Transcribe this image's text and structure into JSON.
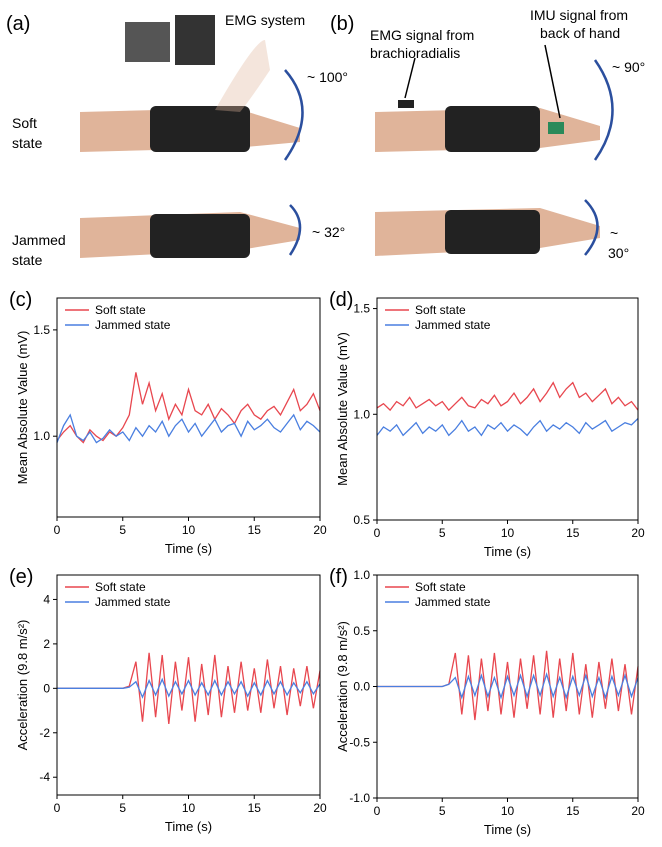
{
  "photos": {
    "a": {
      "label": "(a)",
      "system": "EMG system",
      "soft": [
        "Soft",
        "state"
      ],
      "soft_angle": "~ 100°",
      "jammed": [
        "Jammed",
        "state"
      ],
      "jammed_angle": "~ 32°"
    },
    "b": {
      "label": "(b)",
      "emg": [
        "EMG signal from",
        "brachioradialis"
      ],
      "imu": [
        "IMU signal from",
        "back of hand"
      ],
      "soft_angle": "~ 90°",
      "jammed_angle": [
        "~",
        "30°"
      ]
    }
  },
  "chart_data": [
    {
      "type": "line",
      "label": "(c)",
      "x_label": "Time (s)",
      "y_label": "Mean Absolute Value (mV)",
      "legend": "upper left",
      "xlim": [
        0,
        20
      ],
      "xticks": [
        0,
        5,
        10,
        15,
        20
      ],
      "ylim": [
        0.62,
        1.65
      ],
      "yticks": [
        {
          "value": 1,
          "label": "1.0"
        },
        1.5
      ],
      "x": [
        0,
        0.5,
        1,
        1.5,
        2,
        2.5,
        3,
        3.5,
        4,
        4.5,
        5,
        5.5,
        6,
        6.5,
        7,
        7.5,
        8,
        8.5,
        9,
        9.5,
        10,
        10.5,
        11,
        11.5,
        12,
        12.5,
        13,
        13.5,
        14,
        14.5,
        15,
        15.5,
        16,
        16.5,
        17,
        17.5,
        18,
        18.5,
        19,
        19.5,
        20
      ],
      "series": [
        {
          "name": "Soft state",
          "color": "#e8474f",
          "values": [
            0.98,
            1.02,
            1.05,
            1.0,
            0.97,
            1.03,
            1.0,
            0.98,
            1.02,
            1.0,
            1.04,
            1.1,
            1.3,
            1.15,
            1.25,
            1.12,
            1.2,
            1.08,
            1.15,
            1.1,
            1.22,
            1.12,
            1.1,
            1.15,
            1.08,
            1.13,
            1.1,
            1.06,
            1.12,
            1.15,
            1.1,
            1.08,
            1.12,
            1.14,
            1.1,
            1.16,
            1.22,
            1.12,
            1.15,
            1.2,
            1.12
          ]
        },
        {
          "name": "Jammed state",
          "color": "#4a7fe0",
          "values": [
            0.97,
            1.05,
            1.1,
            1.0,
            0.98,
            1.02,
            0.97,
            0.99,
            1.03,
            1.0,
            1.02,
            0.98,
            1.04,
            1.0,
            1.05,
            1.02,
            1.07,
            1.0,
            1.05,
            1.08,
            1.02,
            1.06,
            1.0,
            1.04,
            1.08,
            1.02,
            1.05,
            1.06,
            1.0,
            1.07,
            1.03,
            1.05,
            1.08,
            1.04,
            1.02,
            1.06,
            1.1,
            1.03,
            1.07,
            1.05,
            1.02
          ]
        }
      ]
    },
    {
      "type": "line",
      "label": "(d)",
      "x_label": "Time (s)",
      "y_label": "Mean Absolute Value (mV)",
      "legend": "upper left",
      "xlim": [
        0,
        20
      ],
      "xticks": [
        0,
        5,
        10,
        15,
        20
      ],
      "ylim": [
        0.5,
        1.55
      ],
      "yticks": [
        0.5,
        {
          "value": 1,
          "label": "1.0"
        },
        1.5
      ],
      "x": [
        0,
        0.5,
        1,
        1.5,
        2,
        2.5,
        3,
        3.5,
        4,
        4.5,
        5,
        5.5,
        6,
        6.5,
        7,
        7.5,
        8,
        8.5,
        9,
        9.5,
        10,
        10.5,
        11,
        11.5,
        12,
        12.5,
        13,
        13.5,
        14,
        14.5,
        15,
        15.5,
        16,
        16.5,
        17,
        17.5,
        18,
        18.5,
        19,
        19.5,
        20
      ],
      "series": [
        {
          "name": "Soft state",
          "color": "#e8474f",
          "values": [
            1.03,
            1.05,
            1.02,
            1.06,
            1.04,
            1.08,
            1.03,
            1.05,
            1.07,
            1.04,
            1.06,
            1.02,
            1.05,
            1.08,
            1.04,
            1.03,
            1.07,
            1.05,
            1.09,
            1.04,
            1.06,
            1.1,
            1.05,
            1.08,
            1.12,
            1.06,
            1.1,
            1.15,
            1.08,
            1.12,
            1.15,
            1.08,
            1.1,
            1.06,
            1.09,
            1.12,
            1.05,
            1.08,
            1.04,
            1.06,
            1.02
          ]
        },
        {
          "name": "Jammed state",
          "color": "#4a7fe0",
          "values": [
            0.9,
            0.94,
            0.92,
            0.95,
            0.9,
            0.93,
            0.96,
            0.91,
            0.94,
            0.92,
            0.95,
            0.9,
            0.93,
            0.97,
            0.92,
            0.94,
            0.9,
            0.95,
            0.93,
            0.96,
            0.92,
            0.95,
            0.93,
            0.9,
            0.94,
            0.97,
            0.92,
            0.95,
            0.93,
            0.96,
            0.94,
            0.91,
            0.96,
            0.93,
            0.95,
            0.97,
            0.92,
            0.94,
            0.96,
            0.95,
            0.98
          ]
        }
      ]
    },
    {
      "type": "line",
      "label": "(e)",
      "x_label": "Time (s)",
      "y_label": "Acceleration (9.8 m/s²)",
      "legend": "upper left",
      "xlim": [
        0,
        20
      ],
      "xticks": [
        0,
        5,
        10,
        15,
        20
      ],
      "ylim": [
        -4.8,
        5.1
      ],
      "yticks": [
        -4,
        -2,
        0,
        2,
        4
      ],
      "x": [
        0,
        0.5,
        1,
        1.5,
        2,
        2.5,
        3,
        3.5,
        4,
        4.5,
        5,
        5.5,
        6,
        6.5,
        7,
        7.5,
        8,
        8.5,
        9,
        9.5,
        10,
        10.5,
        11,
        11.5,
        12,
        12.5,
        13,
        13.5,
        14,
        14.5,
        15,
        15.5,
        16,
        16.5,
        17,
        17.5,
        18,
        18.5,
        19,
        19.5,
        20
      ],
      "series": [
        {
          "name": "Soft state",
          "color": "#e8474f",
          "values": [
            0,
            0,
            0,
            0,
            0,
            0,
            0,
            0,
            0,
            0,
            0,
            0.1,
            1.2,
            -1.5,
            1.6,
            -1.3,
            1.5,
            -1.6,
            1.2,
            -1.0,
            1.4,
            -1.5,
            1.1,
            -1.2,
            1.5,
            -1.3,
            1.0,
            -1.1,
            1.2,
            -1.0,
            0.9,
            -1.1,
            1.3,
            -0.9,
            1.0,
            -1.2,
            0.9,
            -0.8,
            1.0,
            -0.9,
            0.8
          ]
        },
        {
          "name": "Jammed state",
          "color": "#4a7fe0",
          "values": [
            0,
            0,
            0,
            0,
            0,
            0,
            0,
            0,
            0,
            0,
            0,
            0.05,
            0.3,
            -0.4,
            0.35,
            -0.3,
            0.4,
            -0.35,
            0.3,
            -0.25,
            0.35,
            -0.3,
            0.25,
            -0.3,
            0.35,
            -0.3,
            0.3,
            -0.25,
            0.3,
            -0.35,
            0.25,
            -0.3,
            0.35,
            -0.25,
            0.3,
            -0.3,
            0.25,
            -0.2,
            0.3,
            -0.25,
            0.2
          ]
        }
      ]
    },
    {
      "type": "line",
      "label": "(f)",
      "x_label": "Time (s)",
      "y_label": "Acceleration (9.8 m/s²)",
      "legend": "upper left",
      "xlim": [
        0,
        20
      ],
      "xticks": [
        0,
        5,
        10,
        15,
        20
      ],
      "ylim": [
        -1,
        1
      ],
      "yticks": [
        {
          "value": -1,
          "label": "-1.0"
        },
        -0.5,
        {
          "value": 0,
          "label": "0.0"
        },
        0.5,
        {
          "value": 1,
          "label": "1.0"
        }
      ],
      "x": [
        0,
        0.5,
        1,
        1.5,
        2,
        2.5,
        3,
        3.5,
        4,
        4.5,
        5,
        5.5,
        6,
        6.5,
        7,
        7.5,
        8,
        8.5,
        9,
        9.5,
        10,
        10.5,
        11,
        11.5,
        12,
        12.5,
        13,
        13.5,
        14,
        14.5,
        15,
        15.5,
        16,
        16.5,
        17,
        17.5,
        18,
        18.5,
        19,
        19.5,
        20
      ],
      "series": [
        {
          "name": "Soft state",
          "color": "#e8474f",
          "values": [
            0,
            0,
            0,
            0,
            0,
            0,
            0,
            0,
            0,
            0,
            0,
            0.02,
            0.3,
            -0.25,
            0.28,
            -0.3,
            0.25,
            -0.22,
            0.3,
            -0.25,
            0.22,
            -0.28,
            0.25,
            -0.2,
            0.28,
            -0.25,
            0.32,
            -0.28,
            0.25,
            -0.22,
            0.3,
            -0.25,
            0.2,
            -0.28,
            0.22,
            -0.2,
            0.25,
            -0.22,
            0.2,
            -0.25,
            0.18
          ]
        },
        {
          "name": "Jammed state",
          "color": "#4a7fe0",
          "values": [
            0,
            0,
            0,
            0,
            0,
            0,
            0,
            0,
            0,
            0,
            0,
            0.02,
            0.08,
            -0.1,
            0.09,
            -0.08,
            0.1,
            -0.09,
            0.08,
            -0.1,
            0.09,
            -0.08,
            0.1,
            -0.09,
            0.1,
            -0.08,
            0.11,
            -0.09,
            0.08,
            -0.1,
            0.09,
            -0.08,
            0.1,
            -0.09,
            0.08,
            -0.1,
            0.09,
            -0.08,
            0.1,
            -0.09,
            0.08
          ]
        }
      ]
    }
  ]
}
